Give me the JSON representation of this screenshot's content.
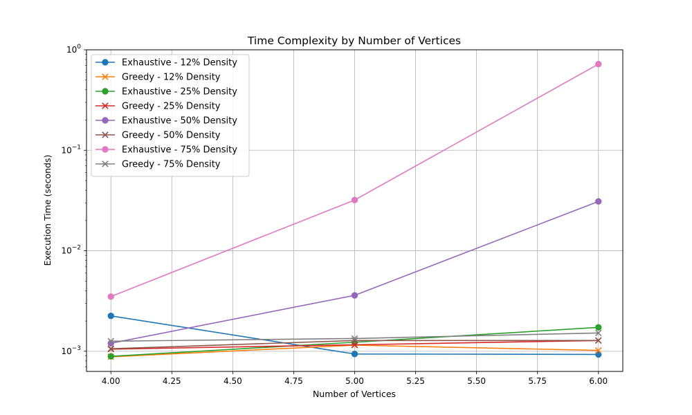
{
  "chart_data": {
    "type": "line",
    "title": "Time Complexity by Number of Vertices",
    "xlabel": "Number of Vertices",
    "ylabel": "Execution Time (seconds)",
    "x": [
      4.0,
      5.0,
      6.0
    ],
    "xlim": [
      3.9,
      6.1
    ],
    "ylim": [
      0.00063,
      1.0
    ],
    "yscale": "log",
    "grid": true,
    "legend_position": "upper-left",
    "x_ticks": [
      "4.00",
      "4.25",
      "4.50",
      "4.75",
      "5.00",
      "5.25",
      "5.50",
      "5.75",
      "6.00"
    ],
    "y_ticks": [
      {
        "base": "10",
        "exp": "−3"
      },
      {
        "base": "10",
        "exp": "−2"
      },
      {
        "base": "10",
        "exp": "−1"
      },
      {
        "base": "10",
        "exp": "0"
      }
    ],
    "series": [
      {
        "name": "Exhaustive - 12% Density",
        "color": "#1f77b4",
        "marker": "circle",
        "values": [
          0.00225,
          0.00094,
          0.00093
        ]
      },
      {
        "name": "Greedy - 12% Density",
        "color": "#ff7f0e",
        "marker": "x",
        "values": [
          0.00088,
          0.00115,
          0.00102
        ]
      },
      {
        "name": "Exhaustive - 25% Density",
        "color": "#2ca02c",
        "marker": "circle",
        "values": [
          0.00089,
          0.00123,
          0.00173
        ]
      },
      {
        "name": "Greedy - 25% Density",
        "color": "#d62728",
        "marker": "x",
        "values": [
          0.00105,
          0.00116,
          0.00128
        ]
      },
      {
        "name": "Exhaustive - 50% Density",
        "color": "#9467bd",
        "marker": "circle",
        "values": [
          0.0012,
          0.0036,
          0.031
        ]
      },
      {
        "name": "Greedy - 50% Density",
        "color": "#8c564b",
        "marker": "x",
        "values": [
          0.00106,
          0.00128,
          0.00128
        ]
      },
      {
        "name": "Exhaustive - 75% Density",
        "color": "#e377c2",
        "marker": "circle",
        "values": [
          0.0035,
          0.032,
          0.72
        ]
      },
      {
        "name": "Greedy - 75% Density",
        "color": "#7f7f7f",
        "marker": "x",
        "values": [
          0.00126,
          0.00134,
          0.00152
        ]
      }
    ]
  }
}
